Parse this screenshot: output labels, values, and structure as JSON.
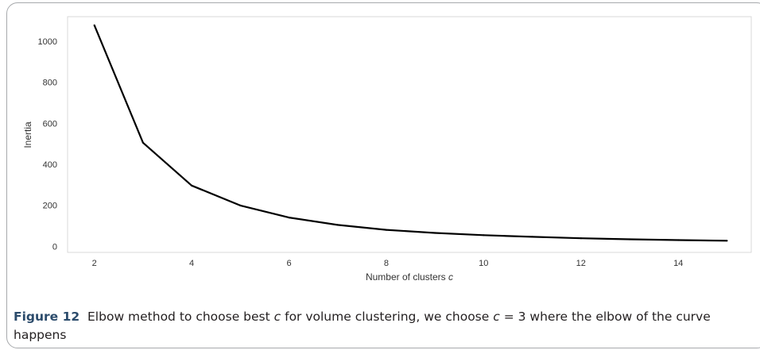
{
  "chart_data": {
    "type": "line",
    "xlabel": "Number of clusters",
    "xlabel_var": "c",
    "ylabel": "Inertia",
    "x": [
      2,
      3,
      4,
      5,
      6,
      7,
      8,
      9,
      10,
      11,
      12,
      13,
      14,
      15
    ],
    "y": [
      1078,
      505,
      296,
      199,
      140,
      104,
      80,
      65,
      54,
      46,
      39,
      34,
      30,
      27
    ],
    "xlim": [
      1.45,
      15.5
    ],
    "ylim": [
      -30,
      1120
    ],
    "xticks": [
      2,
      4,
      6,
      8,
      10,
      12,
      14
    ],
    "yticks": [
      0,
      200,
      400,
      600,
      800,
      1000
    ],
    "xtick_labels": [
      "2",
      "4",
      "6",
      "8",
      "10",
      "12",
      "14"
    ],
    "ytick_labels": [
      "0",
      "200",
      "400",
      "600",
      "800",
      "1000"
    ],
    "grid": false,
    "line_color": "#000000"
  },
  "caption": {
    "figure_label": "Figure 12",
    "part1": "Elbow method to choose best",
    "var1": "c",
    "part2": "for volume clustering, we choose",
    "var2": "c",
    "part3": "= 3 where the elbow of the curve happens"
  }
}
